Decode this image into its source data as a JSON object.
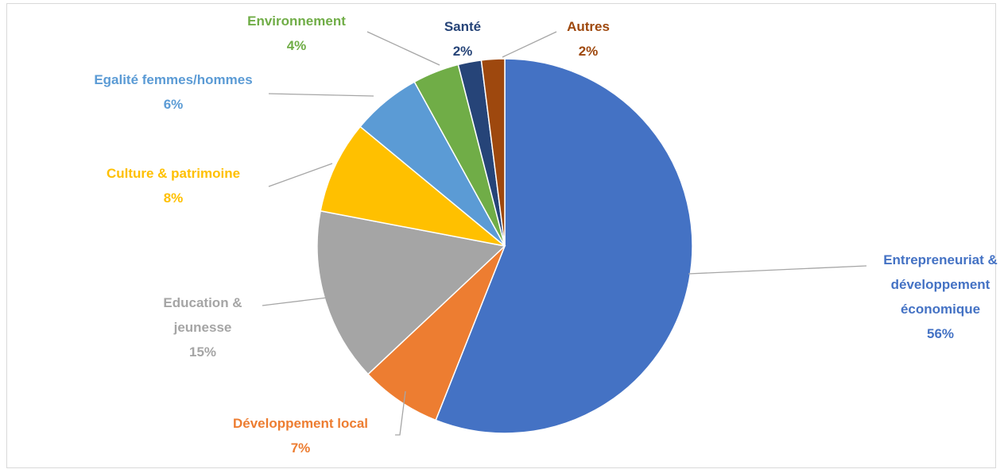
{
  "chart_data": {
    "type": "pie",
    "categories": [
      "Entrepreneuriat & développement économique",
      "Développement local",
      "Education & jeunesse",
      "Culture & patrimoine",
      "Egalité femmes/hommes",
      "Environnement",
      "Santé",
      "Autres"
    ],
    "values": [
      56,
      7,
      15,
      8,
      6,
      4,
      2,
      2
    ],
    "value_labels": [
      "56%",
      "7%",
      "15%",
      "8%",
      "6%",
      "4%",
      "2%",
      "2%"
    ],
    "colors": [
      "#4472c4",
      "#ed7d31",
      "#a5a5a5",
      "#ffc000",
      "#5b9bd5",
      "#70ad47",
      "#264478",
      "#9e480e"
    ]
  }
}
